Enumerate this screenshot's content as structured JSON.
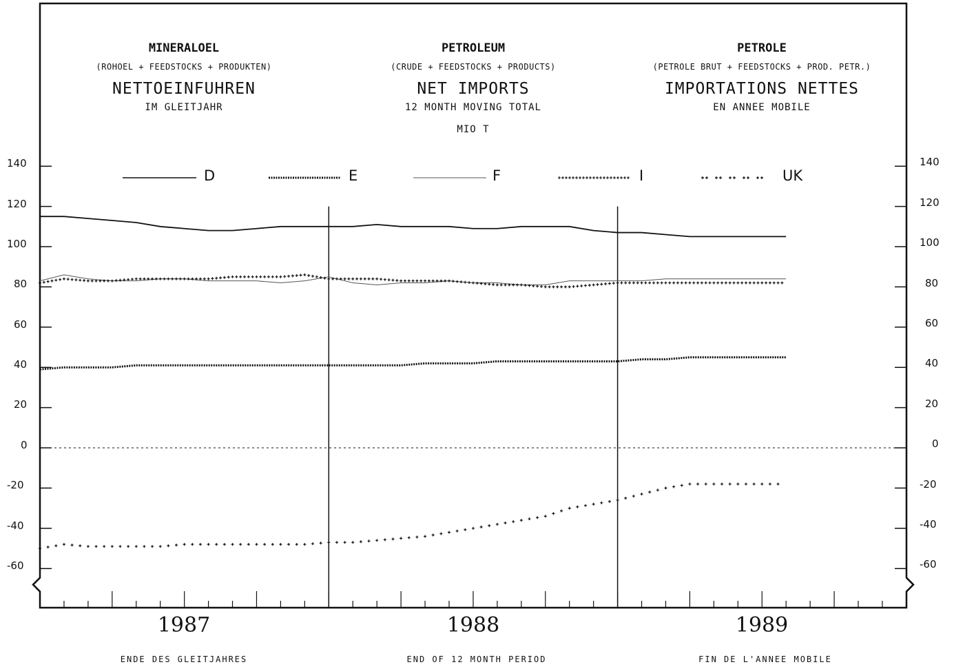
{
  "headers": [
    {
      "title": "MINERALOEL",
      "sub": "(ROHOEL + FEEDSTOCKS + PRODUKTEN)",
      "main": "NETTOEINFUHREN",
      "period": "IM GLEITJAHR"
    },
    {
      "title": "PETROLEUM",
      "sub": "(CRUDE + FEEDSTOCKS + PRODUCTS)",
      "main": "NET IMPORTS",
      "period": "12 MONTH MOVING TOTAL"
    },
    {
      "title": "PETROLE",
      "sub": "(PETROLE BRUT + FEEDSTOCKS + PROD. PETR.)",
      "main": "IMPORTATIONS NETTES",
      "period": "EN ANNEE MOBILE"
    }
  ],
  "unit": "MIO T",
  "footers": [
    "ENDE DES GLEITJAHRES",
    "END OF 12 MONTH PERIOD",
    "FIN DE L'ANNEE MOBILE"
  ],
  "colors": {
    "line": "#111111",
    "f_line": "#555555",
    "background": "#ffffff"
  },
  "chart_data": {
    "type": "line",
    "x_unit": "month",
    "x": [
      "1986-12",
      "1987-01",
      "1987-02",
      "1987-03",
      "1987-04",
      "1987-05",
      "1987-06",
      "1987-07",
      "1987-08",
      "1987-09",
      "1987-10",
      "1987-11",
      "1987-12",
      "1988-01",
      "1988-02",
      "1988-03",
      "1988-04",
      "1988-05",
      "1988-06",
      "1988-07",
      "1988-08",
      "1988-09",
      "1988-10",
      "1988-11",
      "1988-12",
      "1989-01",
      "1989-02",
      "1989-03",
      "1989-04",
      "1989-05",
      "1989-06",
      "1989-07"
    ],
    "x_tick_labels": [
      "1987",
      "1988",
      "1989"
    ],
    "x_range": [
      "1986-12",
      "1989-12"
    ],
    "ylim": [
      -60,
      140
    ],
    "yticks": [
      140,
      120,
      100,
      80,
      60,
      40,
      20,
      0,
      -20,
      -40,
      -60
    ],
    "ytick_labels": [
      "140",
      "120",
      "100",
      "80",
      "60",
      "40",
      "20",
      "0",
      "-20",
      "-40",
      "-60"
    ],
    "axis_break": true,
    "zero_line": "dotted",
    "grid": false,
    "legend_position": "top",
    "series": [
      {
        "name": "D",
        "style": "solid",
        "values": [
          115,
          115,
          114,
          113,
          112,
          110,
          109,
          108,
          108,
          109,
          110,
          110,
          110,
          110,
          111,
          110,
          110,
          110,
          109,
          109,
          110,
          110,
          110,
          108,
          107,
          107,
          106,
          105,
          105,
          105,
          105,
          105
        ]
      },
      {
        "name": "E",
        "style": "dashed",
        "values": [
          39,
          40,
          40,
          40,
          41,
          41,
          41,
          41,
          41,
          41,
          41,
          41,
          41,
          41,
          41,
          41,
          42,
          42,
          42,
          43,
          43,
          43,
          43,
          43,
          43,
          44,
          44,
          45,
          45,
          45,
          45,
          45
        ]
      },
      {
        "name": "F",
        "style": "thin",
        "values": [
          83,
          86,
          84,
          83,
          83,
          84,
          84,
          83,
          83,
          83,
          82,
          83,
          85,
          82,
          81,
          82,
          82,
          83,
          82,
          82,
          81,
          81,
          83,
          83,
          83,
          83,
          84,
          84,
          84,
          84,
          84,
          84
        ]
      },
      {
        "name": "I",
        "style": "plus-dense",
        "values": [
          82,
          84,
          83,
          83,
          84,
          84,
          84,
          84,
          85,
          85,
          85,
          86,
          84,
          84,
          84,
          83,
          83,
          83,
          82,
          81,
          81,
          80,
          80,
          81,
          82,
          82,
          82,
          82,
          82,
          82,
          82,
          82
        ]
      },
      {
        "name": "UK",
        "style": "plus-sparse",
        "values": [
          -50,
          -48,
          -49,
          -49,
          -49,
          -49,
          -48,
          -48,
          -48,
          -48,
          -48,
          -48,
          -47,
          -47,
          -46,
          -45,
          -44,
          -42,
          -40,
          -38,
          -36,
          -34,
          -30,
          -28,
          -26,
          -23,
          -20,
          -18,
          -18,
          -18,
          -18,
          -18
        ]
      }
    ]
  }
}
